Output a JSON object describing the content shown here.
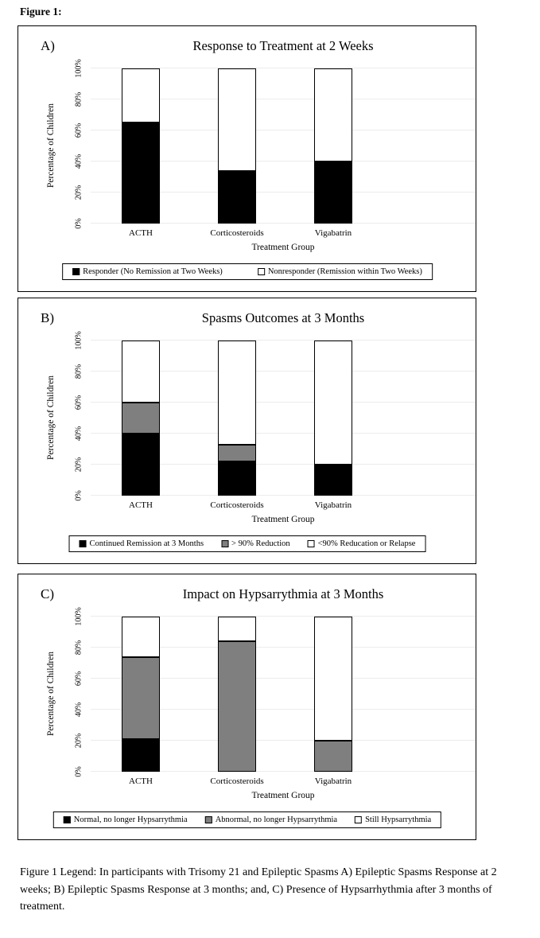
{
  "page": {
    "figure_label": "Figure 1:",
    "caption": "Figure 1 Legend: In participants with Trisomy 21 and Epileptic Spasms A) Epileptic Spasms Response at 2 weeks; B) Epileptic Spasms Response at 3 months; and, C) Presence of Hypsarrhythmia after 3 months of treatment."
  },
  "colors": {
    "series_black": "#000000",
    "series_gray": "#7f7f7f",
    "series_white": "#ffffff",
    "gridline": "#ececec",
    "frame_border": "#000000"
  },
  "chart_data": [
    {
      "type": "bar",
      "stacked": true,
      "panel_label": "A)",
      "title": "Response to Treatment at 2 Weeks",
      "categories": [
        "ACTH",
        "Corticosteroids",
        "Vigabatrin"
      ],
      "series": [
        {
          "name": "Responder (No Remission at Two Weeks)",
          "color": "#000000",
          "values": [
            65,
            34,
            40
          ]
        },
        {
          "name": "Nonresponder (Remission within Two Weeks)",
          "color": "#ffffff",
          "values": [
            35,
            66,
            60
          ]
        }
      ],
      "xlabel": "Treatment Group",
      "ylabel": "Percentage of Children",
      "ylim": [
        0,
        100
      ],
      "yticks": [
        "0%",
        "20%",
        "40%",
        "60%",
        "80%",
        "100%"
      ],
      "grid": true,
      "legend_position": "bottom"
    },
    {
      "type": "bar",
      "stacked": true,
      "panel_label": "B)",
      "title": "Spasms Outcomes at 3 Months",
      "categories": [
        "ACTH",
        "Corticosteroids",
        "Vigabatrin"
      ],
      "series": [
        {
          "name": "Continued Remission at 3 Months",
          "color": "#000000",
          "values": [
            40,
            22,
            20
          ]
        },
        {
          "name": "> 90% Reduction",
          "color": "#7f7f7f",
          "values": [
            20,
            11,
            0
          ]
        },
        {
          "name": "<90% Reducation or Relapse",
          "color": "#ffffff",
          "values": [
            40,
            67,
            80
          ]
        }
      ],
      "xlabel": "Treatment Group",
      "ylabel": "Percentage of Children",
      "ylim": [
        0,
        100
      ],
      "yticks": [
        "0%",
        "20%",
        "40%",
        "60%",
        "80%",
        "100%"
      ],
      "grid": true,
      "legend_position": "bottom"
    },
    {
      "type": "bar",
      "stacked": true,
      "panel_label": "C)",
      "title": "Impact on Hypsarrythmia at 3 Months",
      "categories": [
        "ACTH",
        "Corticosteroids",
        "Vigabatrin"
      ],
      "series": [
        {
          "name": "Normal, no longer Hypsarrythmia",
          "color": "#000000",
          "values": [
            21,
            0,
            0
          ]
        },
        {
          "name": "Abnormal, no longer Hypsarrythmia",
          "color": "#7f7f7f",
          "values": [
            53,
            84,
            20
          ]
        },
        {
          "name": "Still Hypsarrythmia",
          "color": "#ffffff",
          "values": [
            26,
            16,
            80
          ]
        }
      ],
      "xlabel": "Treatment Group",
      "ylabel": "Percentage of Children",
      "ylim": [
        0,
        100
      ],
      "yticks": [
        "0%",
        "20%",
        "40%",
        "60%",
        "80%",
        "100%"
      ],
      "grid": true,
      "legend_position": "bottom"
    }
  ]
}
